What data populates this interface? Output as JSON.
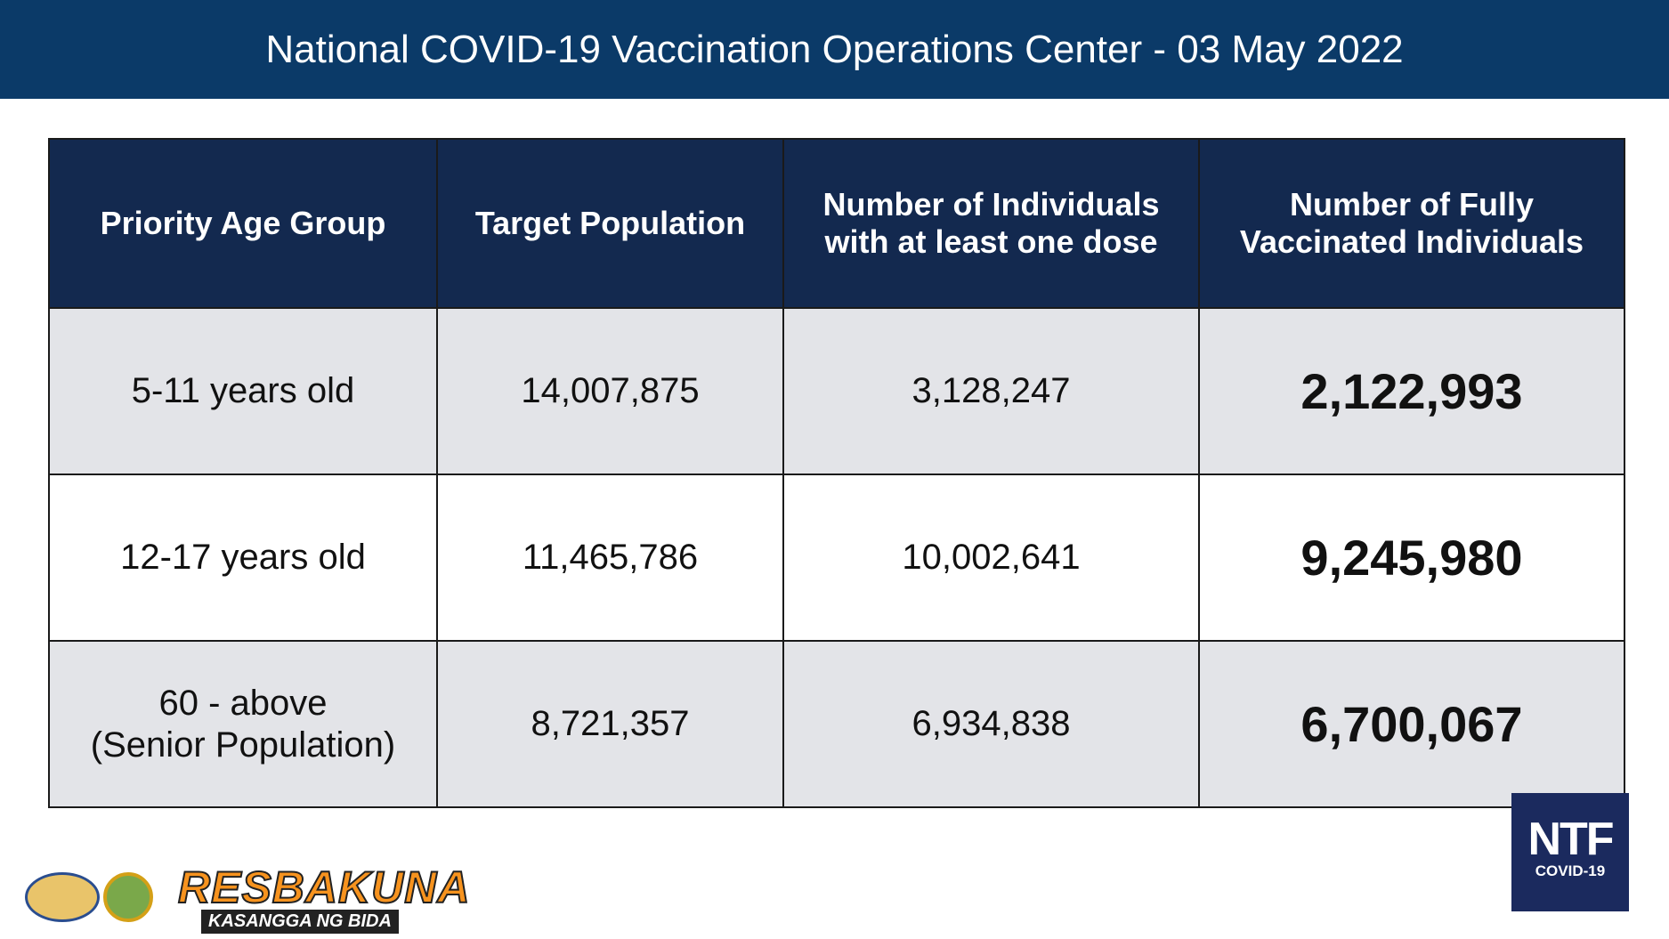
{
  "header": {
    "title": "National COVID-19 Vaccination Operations Center - 03 May 2022"
  },
  "table": {
    "columns": [
      "Priority Age Group",
      "Target Population",
      "Number of Individuals with at least one dose",
      "Number of Fully Vaccinated Individuals"
    ],
    "rows": [
      [
        [
          "5-11 years old"
        ],
        "14,007,875",
        "3,128,247",
        "2,122,993"
      ],
      [
        [
          "12-17 years old"
        ],
        "11,465,786",
        "10,002,641",
        "9,245,980"
      ],
      [
        [
          "60 - above",
          "(Senior Population)"
        ],
        "8,721,357",
        "6,934,838",
        "6,700,067"
      ]
    ]
  },
  "logos": {
    "resbakuna": "RESBAKUNA",
    "tagline": "KASANGGA NG BIDA",
    "ntf": "NTF",
    "ntf_sub": "COVID-19"
  }
}
